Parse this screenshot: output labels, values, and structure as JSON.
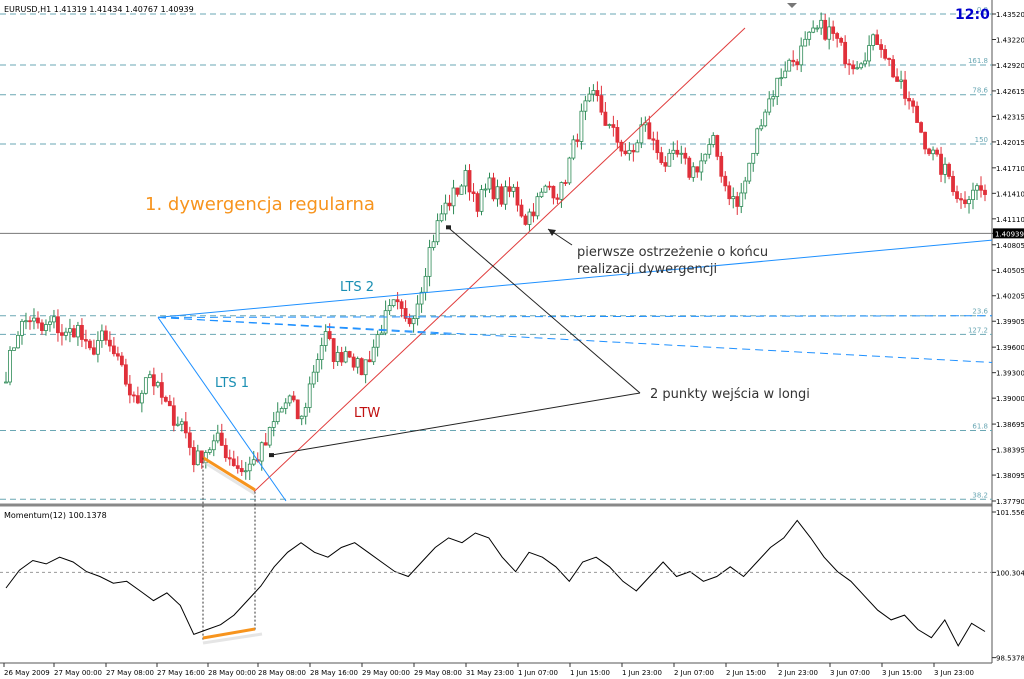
{
  "header": {
    "symbol_info": "EURUSD,H1  1.41319 1.41434 1.40767 1.40939",
    "clock": "12:0"
  },
  "colors": {
    "bull": "#2e8b57",
    "bear": "#e0303a",
    "current_price": "#000000",
    "fib": "#6aa7b4",
    "lts_line": "#1e90ff",
    "ltw_line": "#e03c3c",
    "divergence": "#f7941d",
    "title_text": "#f7941d",
    "lts_text": "#1a8fb3",
    "ltw_text": "#c01010"
  },
  "annotations": {
    "title": "1. dywergencja regularna",
    "lts1": "LTS 1",
    "lts2": "LTS 2",
    "ltw": "LTW",
    "warning_line1": "pierwsze ostrzeżenie o końcu",
    "warning_line2": "realizacji dywergencji",
    "entry_points": "2 punkty wejścia w longi"
  },
  "chart_data": [
    {
      "type": "candlestick",
      "symbol": "EURUSD",
      "timeframe": "H1",
      "ylim": [
        1.3779,
        1.4352
      ],
      "current_price": 1.40939,
      "y_ticks": [
        "1.43520",
        "1.43220",
        "1.42920",
        "1.42615",
        "1.42315",
        "1.42015",
        "1.41710",
        "1.41410",
        "1.41110",
        "1.40939",
        "1.40805",
        "1.40505",
        "1.40205",
        "1.39905",
        "1.39600",
        "1.39300",
        "1.39000",
        "1.38695",
        "1.38395",
        "1.38095",
        "1.37790"
      ],
      "fib_levels": [
        {
          "label": "0.0",
          "price": 1.4352
        },
        {
          "label": "161.8",
          "price": 1.4292
        },
        {
          "label": "78.6",
          "price": 1.4257
        },
        {
          "label": "150",
          "price": 1.4199
        },
        {
          "label": "23.6",
          "price": 1.3997
        },
        {
          "label": "127.2",
          "price": 1.3975
        },
        {
          "label": "61.8",
          "price": 1.3862
        },
        {
          "label": "38.2",
          "price": 1.3781
        }
      ],
      "x_labels": [
        "26 May 2009",
        "27 May 00:00",
        "27 May 08:00",
        "27 May 16:00",
        "28 May 00:00",
        "28 May 08:00",
        "28 May 16:00",
        "29 May 00:00",
        "29 May 08:00",
        "31 May 23:00",
        "1 Jun 07:00",
        "1 Jun 15:00",
        "1 Jun 23:00",
        "2 Jun 07:00",
        "2 Jun 15:00",
        "2 Jun 23:00",
        "3 Jun 07:00",
        "3 Jun 15:00",
        "3 Jun 23:00"
      ],
      "close_path": [
        1.393,
        1.398,
        1.3995,
        1.3978,
        1.399,
        1.3972,
        1.3985,
        1.395,
        1.3972,
        1.3955,
        1.3925,
        1.389,
        1.3935,
        1.3905,
        1.388,
        1.387,
        1.3825,
        1.384,
        1.385,
        1.383,
        1.3815,
        1.3825,
        1.3845,
        1.388,
        1.39,
        1.387,
        1.393,
        1.3975,
        1.3945,
        1.396,
        1.393,
        1.3955,
        1.399,
        1.401,
        1.3985,
        1.402,
        1.408,
        1.412,
        1.414,
        1.416,
        1.413,
        1.415,
        1.4135,
        1.4145,
        1.411,
        1.413,
        1.415,
        1.414,
        1.419,
        1.424,
        1.4255,
        1.422,
        1.42,
        1.418,
        1.4225,
        1.4195,
        1.4175,
        1.4185,
        1.4165,
        1.418,
        1.42,
        1.415,
        1.4125,
        1.417,
        1.423,
        1.426,
        1.429,
        1.43,
        1.432,
        1.4335,
        1.433,
        1.4305,
        1.4295,
        1.431,
        1.4325,
        1.429,
        1.426,
        1.4235,
        1.42,
        1.4175,
        1.416,
        1.413,
        1.415,
        1.414
      ]
    },
    {
      "type": "line",
      "title": "Momentum(12) 100.1378",
      "ylim": [
        98.53,
        101.556
      ],
      "y_ticks": [
        "101.556",
        "100.3048",
        "98.5378"
      ],
      "values": [
        99.98,
        100.35,
        100.55,
        100.48,
        100.62,
        100.52,
        100.32,
        100.22,
        100.08,
        100.12,
        99.92,
        99.72,
        99.88,
        99.62,
        99.02,
        99.12,
        99.22,
        99.42,
        99.72,
        100.02,
        100.42,
        100.72,
        100.92,
        100.72,
        100.62,
        100.82,
        100.92,
        100.72,
        100.52,
        100.32,
        100.22,
        100.52,
        100.82,
        101.02,
        100.92,
        101.12,
        101.02,
        100.62,
        100.32,
        100.72,
        100.62,
        100.42,
        100.12,
        100.52,
        100.62,
        100.42,
        100.12,
        99.92,
        100.22,
        100.52,
        100.22,
        100.32,
        100.12,
        100.22,
        100.42,
        100.22,
        100.52,
        100.82,
        101.02,
        101.38,
        101.02,
        100.62,
        100.32,
        100.12,
        99.82,
        99.52,
        99.32,
        99.42,
        99.12,
        98.95,
        99.32,
        98.78,
        99.25,
        99.08
      ]
    }
  ]
}
